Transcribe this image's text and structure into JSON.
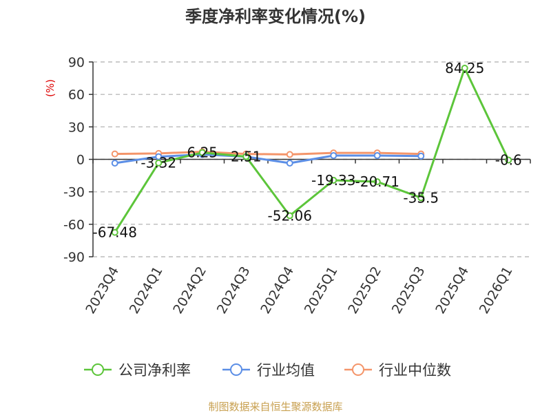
{
  "chart_data": {
    "type": "line",
    "title": "季度净利率变化情况(%)",
    "unit_label": "(%)",
    "categories": [
      "2023Q4",
      "2024Q1",
      "2024Q2",
      "2024Q3",
      "2024Q4",
      "2025Q1",
      "2025Q2",
      "2025Q3",
      "2025Q4",
      "2026Q1"
    ],
    "ylim": [
      -90,
      90
    ],
    "yticks": [
      90,
      60,
      30,
      0,
      -30,
      -60,
      -90
    ],
    "grid": true,
    "legend_position": "bottom",
    "series": [
      {
        "name": "公司净利率",
        "color": "#5cc53a",
        "values": [
          -67.48,
          -3.32,
          6.25,
          2.51,
          -52.06,
          -19.33,
          -20.71,
          -35.5,
          84.25,
          -0.6
        ],
        "labels": [
          "-67.48",
          "-3.32",
          "6.25",
          "2.51",
          "-52.06",
          "-19.33",
          "-20.71",
          "-35.5",
          "84.25",
          "-0.6"
        ]
      },
      {
        "name": "行业均值",
        "color": "#5b8ee6",
        "values": [
          -3.5,
          2.5,
          4.5,
          2.5,
          -3.5,
          3.5,
          3.5,
          3.0,
          null,
          null
        ]
      },
      {
        "name": "行业中位数",
        "color": "#f4956a",
        "values": [
          5.0,
          5.5,
          7.0,
          5.0,
          4.5,
          6.0,
          6.0,
          5.0,
          null,
          null
        ]
      }
    ]
  },
  "source": "制图数据来自恒生聚源数据库"
}
